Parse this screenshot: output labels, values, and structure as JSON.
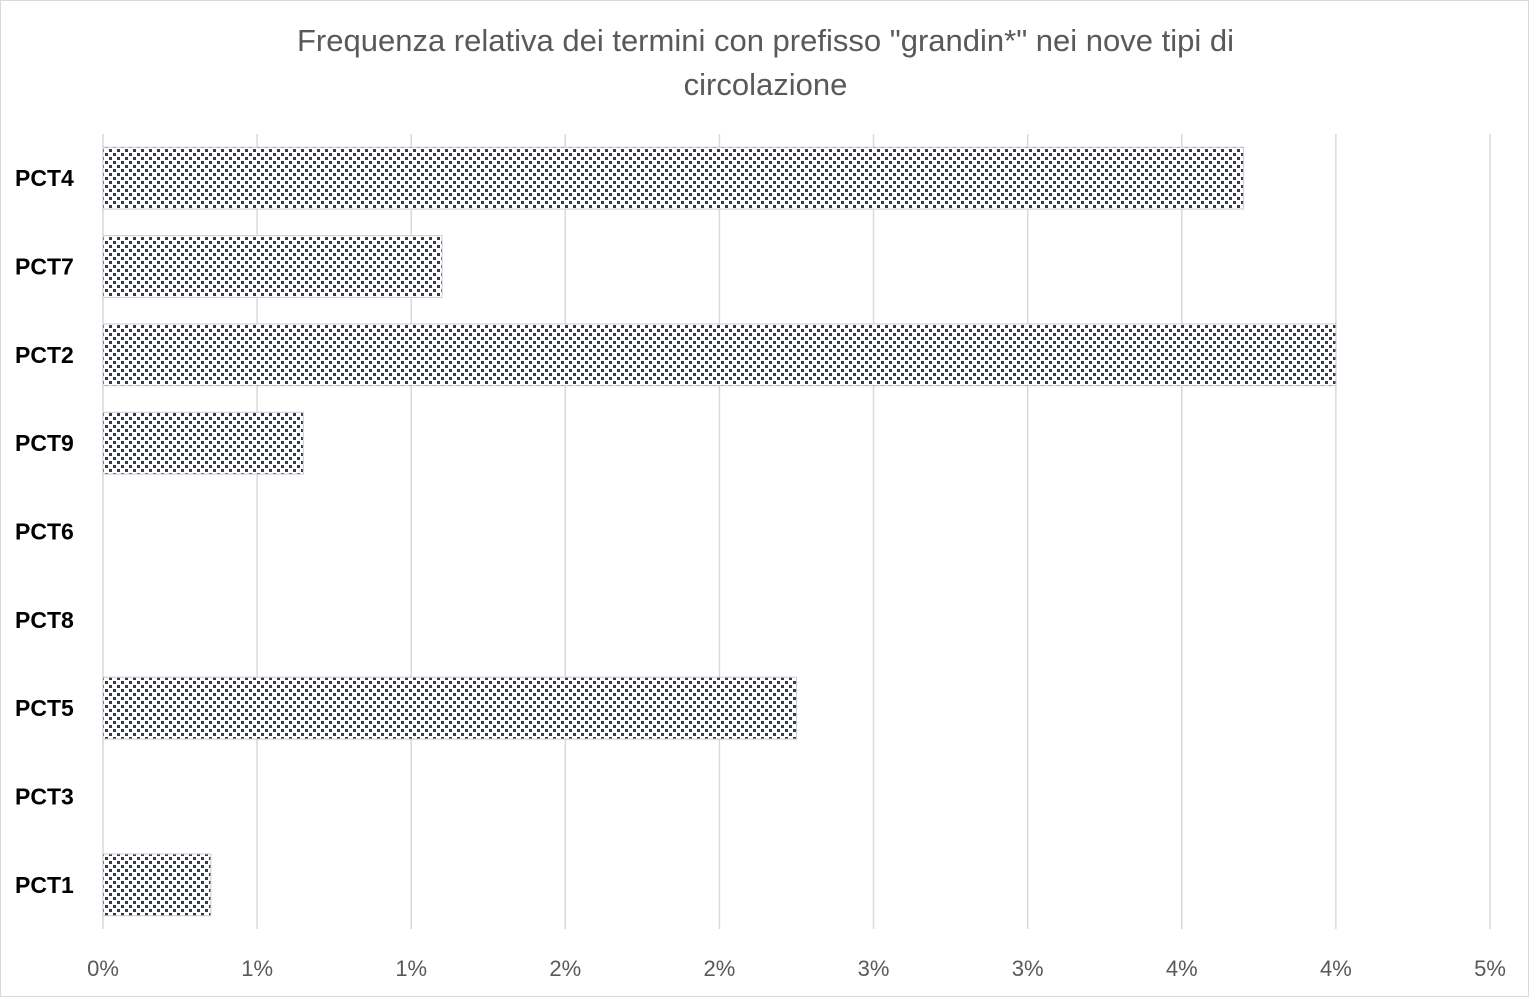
{
  "chart_data": {
    "type": "bar",
    "orientation": "horizontal",
    "title_lines": [
      "Frequenza relativa dei termini con prefisso \"grandin*\" nei nove tipi di",
      "circolazione"
    ],
    "categories": [
      "PCT4",
      "PCT7",
      "PCT2",
      "PCT9",
      "PCT6",
      "PCT8",
      "PCT5",
      "PCT3",
      "PCT1"
    ],
    "values": [
      3.7,
      1.1,
      4.0,
      0.65,
      0,
      0,
      2.25,
      0,
      0.35
    ],
    "x_tick_labels": [
      "0%",
      "1%",
      "1%",
      "2%",
      "2%",
      "3%",
      "3%",
      "4%",
      "4%",
      "5%"
    ],
    "x_tick_values": [
      0,
      0.5,
      1.0,
      1.5,
      2.0,
      2.5,
      3.0,
      3.5,
      4.0,
      4.5
    ],
    "xlim": [
      0,
      4.5
    ],
    "xlabel": "",
    "ylabel": "",
    "grid": "vertical",
    "legend": "none",
    "bar_pattern": "dotted",
    "colors": {
      "bar_dots": "#2f3a4e",
      "bar_bg": "#ffffff",
      "grid": "#d9d9d9",
      "title": "#595959",
      "tick": "#595959",
      "category": "#000000"
    }
  }
}
